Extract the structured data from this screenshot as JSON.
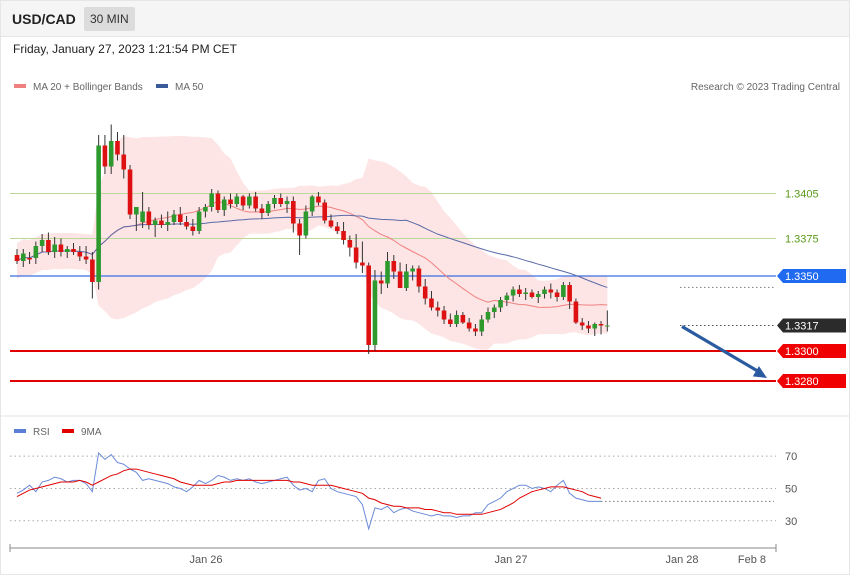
{
  "header": {
    "pair": "USD/CAD",
    "timeframe": "30 MIN"
  },
  "datetime": "Friday, January 27, 2023 1:21:54 PM CET",
  "credit": "Research © 2023 Trading Central",
  "legend_main": [
    {
      "name": "MA 20 + Bollinger Bands",
      "color": "#f08080"
    },
    {
      "name": "MA 50",
      "color": "#3a5a9a"
    }
  ],
  "legend_rsi": [
    {
      "name": "RSI",
      "color": "#5b7fd6"
    },
    {
      "name": "9MA",
      "color": "#e00000"
    }
  ],
  "colors": {
    "up": "#2e9a2e",
    "down": "#dd1111",
    "band": "#fde0e0",
    "ma20": "#f08080",
    "ma50": "#5a6aa8",
    "rsi": "#6a8ad8",
    "rsi_ma": "#e00000"
  },
  "chart_data": [
    {
      "type": "candlestick",
      "title": "USD/CAD 30 MIN",
      "ylim": [
        1.326,
        1.347
      ],
      "x_ticks": [
        "Jan 26",
        "Jan 27",
        "Jan 28",
        "Feb 8"
      ],
      "levels": [
        {
          "value": 1.3405,
          "label": "1.3405",
          "kind": "resistance-line"
        },
        {
          "value": 1.3375,
          "label": "1.3375",
          "kind": "resistance-line"
        },
        {
          "value": 1.335,
          "label": "1.3350",
          "kind": "pivot"
        },
        {
          "value": 1.3317,
          "label": "1.3317",
          "kind": "last-price"
        },
        {
          "value": 1.33,
          "label": "1.3300",
          "kind": "support"
        },
        {
          "value": 1.328,
          "label": "1.3280",
          "kind": "support"
        }
      ],
      "candles": [
        [
          1.3364,
          1.3368,
          1.3358,
          1.336
        ],
        [
          1.336,
          1.3368,
          1.3356,
          1.3365
        ],
        [
          1.3362,
          1.3366,
          1.3358,
          1.3361
        ],
        [
          1.3362,
          1.3373,
          1.3358,
          1.337
        ],
        [
          1.337,
          1.3378,
          1.3366,
          1.3374
        ],
        [
          1.3374,
          1.3379,
          1.3364,
          1.3366
        ],
        [
          1.3366,
          1.3376,
          1.3362,
          1.3371
        ],
        [
          1.3371,
          1.3375,
          1.3363,
          1.3366
        ],
        [
          1.3366,
          1.337,
          1.3362,
          1.3368
        ],
        [
          1.3368,
          1.3372,
          1.3364,
          1.3366
        ],
        [
          1.3366,
          1.337,
          1.336,
          1.3363
        ],
        [
          1.3363,
          1.337,
          1.3358,
          1.3361
        ],
        [
          1.3361,
          1.3366,
          1.3335,
          1.3346
        ],
        [
          1.3346,
          1.3444,
          1.3341,
          1.3437
        ],
        [
          1.3437,
          1.3444,
          1.3418,
          1.3423
        ],
        [
          1.3423,
          1.3451,
          1.3418,
          1.344
        ],
        [
          1.344,
          1.3446,
          1.3427,
          1.3431
        ],
        [
          1.3431,
          1.3444,
          1.3415,
          1.3421
        ],
        [
          1.3421,
          1.3424,
          1.3388,
          1.3391
        ],
        [
          1.3391,
          1.3396,
          1.338,
          1.3396
        ],
        [
          1.3386,
          1.3406,
          1.3382,
          1.3393
        ],
        [
          1.3393,
          1.3396,
          1.3381,
          1.3384
        ],
        [
          1.3384,
          1.3389,
          1.3376,
          1.3387
        ],
        [
          1.3387,
          1.3391,
          1.3382,
          1.3384
        ],
        [
          1.3384,
          1.3393,
          1.338,
          1.3386
        ],
        [
          1.3386,
          1.3394,
          1.3384,
          1.3391
        ],
        [
          1.3391,
          1.3396,
          1.3384,
          1.3386
        ],
        [
          1.3386,
          1.339,
          1.3381,
          1.3383
        ],
        [
          1.3383,
          1.3388,
          1.3377,
          1.338
        ],
        [
          1.338,
          1.3396,
          1.3378,
          1.3393
        ],
        [
          1.3393,
          1.3398,
          1.3389,
          1.3396
        ],
        [
          1.3396,
          1.3408,
          1.3393,
          1.3405
        ],
        [
          1.3405,
          1.3407,
          1.3392,
          1.3394
        ],
        [
          1.3394,
          1.3403,
          1.339,
          1.3401
        ],
        [
          1.3401,
          1.3405,
          1.3395,
          1.3398
        ],
        [
          1.3398,
          1.3405,
          1.3396,
          1.3403
        ],
        [
          1.3403,
          1.3404,
          1.3394,
          1.3397
        ],
        [
          1.3397,
          1.3405,
          1.3395,
          1.3403
        ],
        [
          1.3403,
          1.3406,
          1.3393,
          1.3395
        ],
        [
          1.3395,
          1.3398,
          1.3388,
          1.3392
        ],
        [
          1.3392,
          1.34,
          1.339,
          1.3398
        ],
        [
          1.3398,
          1.3404,
          1.3395,
          1.3402
        ],
        [
          1.3402,
          1.3405,
          1.3396,
          1.3398
        ],
        [
          1.3398,
          1.3403,
          1.3392,
          1.34
        ],
        [
          1.34,
          1.3403,
          1.3379,
          1.3385
        ],
        [
          1.3385,
          1.3388,
          1.3364,
          1.3377
        ],
        [
          1.3377,
          1.3397,
          1.3375,
          1.3393
        ],
        [
          1.3393,
          1.3404,
          1.339,
          1.3403
        ],
        [
          1.3403,
          1.3406,
          1.3397,
          1.3399
        ],
        [
          1.3399,
          1.3401,
          1.3385,
          1.3387
        ],
        [
          1.3387,
          1.3391,
          1.3382,
          1.3383
        ],
        [
          1.3383,
          1.3386,
          1.3378,
          1.338
        ],
        [
          1.338,
          1.3386,
          1.3371,
          1.3374
        ],
        [
          1.3374,
          1.3377,
          1.3363,
          1.3369
        ],
        [
          1.3369,
          1.3378,
          1.3355,
          1.3359
        ],
        [
          1.3359,
          1.3373,
          1.3352,
          1.3357
        ],
        [
          1.3357,
          1.3359,
          1.3298,
          1.3304
        ],
        [
          1.3304,
          1.3354,
          1.33,
          1.3347
        ],
        [
          1.3347,
          1.3353,
          1.3338,
          1.3345
        ],
        [
          1.3345,
          1.3366,
          1.3342,
          1.336
        ],
        [
          1.336,
          1.3364,
          1.3348,
          1.3353
        ],
        [
          1.3353,
          1.3359,
          1.3342,
          1.3342
        ],
        [
          1.3342,
          1.3358,
          1.334,
          1.3353
        ],
        [
          1.3353,
          1.3357,
          1.3347,
          1.3355
        ],
        [
          1.3355,
          1.3357,
          1.3339,
          1.3343
        ],
        [
          1.3343,
          1.3348,
          1.3331,
          1.3335
        ],
        [
          1.3335,
          1.334,
          1.3327,
          1.3329
        ],
        [
          1.3329,
          1.3333,
          1.3323,
          1.3327
        ],
        [
          1.3327,
          1.333,
          1.3318,
          1.3321
        ],
        [
          1.3321,
          1.3325,
          1.3316,
          1.3318
        ],
        [
          1.3318,
          1.3327,
          1.3316,
          1.3324
        ],
        [
          1.3324,
          1.3326,
          1.3318,
          1.3319
        ],
        [
          1.3319,
          1.3322,
          1.3313,
          1.3315
        ],
        [
          1.3315,
          1.3318,
          1.331,
          1.3313
        ],
        [
          1.3313,
          1.3324,
          1.331,
          1.3321
        ],
        [
          1.3321,
          1.3329,
          1.3319,
          1.3326
        ],
        [
          1.3326,
          1.3331,
          1.3322,
          1.3329
        ],
        [
          1.3329,
          1.3336,
          1.3326,
          1.3334
        ],
        [
          1.3334,
          1.3339,
          1.333,
          1.3337
        ],
        [
          1.3337,
          1.3343,
          1.3333,
          1.3341
        ],
        [
          1.3341,
          1.3344,
          1.3336,
          1.3338
        ],
        [
          1.3338,
          1.3342,
          1.3334,
          1.3339
        ],
        [
          1.3339,
          1.3341,
          1.3335,
          1.3336
        ],
        [
          1.3336,
          1.334,
          1.3332,
          1.3338
        ],
        [
          1.3338,
          1.3343,
          1.3335,
          1.3341
        ],
        [
          1.3341,
          1.3345,
          1.3335,
          1.3339
        ],
        [
          1.3339,
          1.3341,
          1.3333,
          1.3336
        ],
        [
          1.3336,
          1.3346,
          1.3334,
          1.3344
        ],
        [
          1.3344,
          1.3346,
          1.3328,
          1.3333
        ],
        [
          1.3333,
          1.3335,
          1.3318,
          1.3319
        ],
        [
          1.3319,
          1.3322,
          1.3314,
          1.3317
        ],
        [
          1.3317,
          1.332,
          1.3312,
          1.3315
        ],
        [
          1.3315,
          1.3319,
          1.331,
          1.3318
        ],
        [
          1.3318,
          1.332,
          1.3311,
          1.3317
        ],
        [
          1.3317,
          1.3327,
          1.3313,
          1.3317
        ]
      ],
      "projection": {
        "from": 1.3317,
        "to": 1.328
      },
      "rsi": {
        "ylim": [
          15,
          80
        ],
        "ticks": [
          70,
          50,
          30
        ],
        "rsi": [
          47,
          49,
          52,
          48,
          54,
          55,
          57,
          56,
          54,
          55,
          55,
          53,
          48,
          72,
          68,
          71,
          66,
          65,
          62,
          60,
          55,
          56,
          55,
          54,
          53,
          51,
          50,
          48,
          51,
          55,
          53,
          55,
          58,
          57,
          55,
          56,
          55,
          56,
          54,
          53,
          54,
          55,
          56,
          57,
          52,
          49,
          50,
          48,
          55,
          56,
          50,
          48,
          47,
          46,
          45,
          40,
          25,
          38,
          37,
          39,
          35,
          37,
          38,
          36,
          35,
          34,
          33,
          34,
          33,
          33,
          32,
          33,
          33,
          35,
          35,
          40,
          42,
          44,
          48,
          50,
          52,
          52,
          50,
          51,
          50,
          48,
          52,
          55,
          47,
          44,
          43,
          42,
          42,
          42
        ],
        "rsi_ma": [
          45,
          47,
          49,
          50,
          51,
          52,
          53,
          54,
          54,
          54,
          55,
          54,
          52,
          54,
          56,
          58,
          59,
          61,
          62,
          62,
          61,
          60,
          59,
          58,
          57,
          56,
          54,
          53,
          52,
          52,
          52,
          52,
          53,
          54,
          54,
          55,
          55,
          55,
          55,
          55,
          55,
          55,
          55,
          55,
          54,
          54,
          53,
          52,
          52,
          52,
          52,
          51,
          50,
          49,
          48,
          47,
          44,
          43,
          41,
          40,
          39,
          39,
          38,
          38,
          38,
          37,
          37,
          36,
          35,
          35,
          34,
          34,
          34,
          34,
          34,
          35,
          36,
          37,
          39,
          41,
          44,
          46,
          48,
          49,
          50,
          51,
          51,
          51,
          50,
          49,
          48,
          46,
          45,
          44
        ]
      }
    }
  ]
}
